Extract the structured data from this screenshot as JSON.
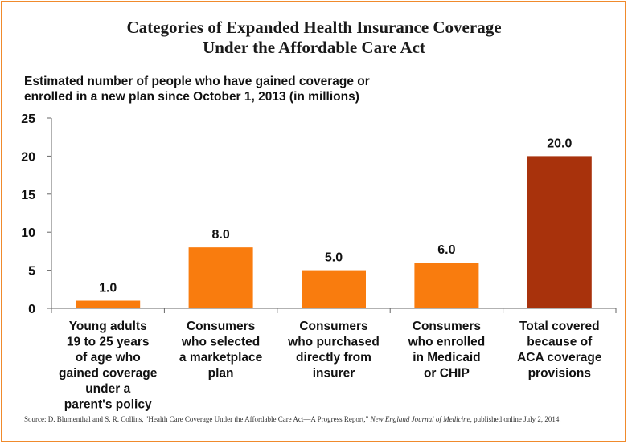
{
  "chart_data": {
    "type": "bar",
    "title_lines": [
      "Categories of Expanded Health Insurance Coverage",
      "Under the Affordable Care Act"
    ],
    "subtitle_lines": [
      "Estimated number of people who have gained coverage or",
      "enrolled in a new plan since October 1, 2013 (in millions)"
    ],
    "categories": [
      [
        "Young adults",
        "19 to 25 years",
        "of age who",
        "gained coverage",
        "under a",
        "parent's policy"
      ],
      [
        "Consumers",
        "who selected",
        "a marketplace",
        "plan"
      ],
      [
        "Consumers",
        "who purchased",
        "directly from",
        "insurer"
      ],
      [
        "Consumers",
        "who enrolled",
        "in Medicaid",
        "or CHIP"
      ],
      [
        "Total covered",
        "because of",
        "ACA coverage",
        "provisions"
      ]
    ],
    "values": [
      1.0,
      8.0,
      5.0,
      6.0,
      20.0
    ],
    "value_labels": [
      "1.0",
      "8.0",
      "5.0",
      "6.0",
      "20.0"
    ],
    "bar_colors": [
      "#f97c0e",
      "#f97c0e",
      "#f97c0e",
      "#f97c0e",
      "#a8320c"
    ],
    "ylim": [
      0,
      25
    ],
    "yticks": [
      0,
      5,
      10,
      15,
      20,
      25
    ],
    "grid": false,
    "legend": "none"
  },
  "source": {
    "prefix": "Source: D. Blumenthal and S. R. Collins, \"Health Care Coverage Under the Affordable Care Act—A Progress Report,\"",
    "journal": "New England Journal of Medicine,",
    "suffix": "published online July 2, 2014."
  }
}
